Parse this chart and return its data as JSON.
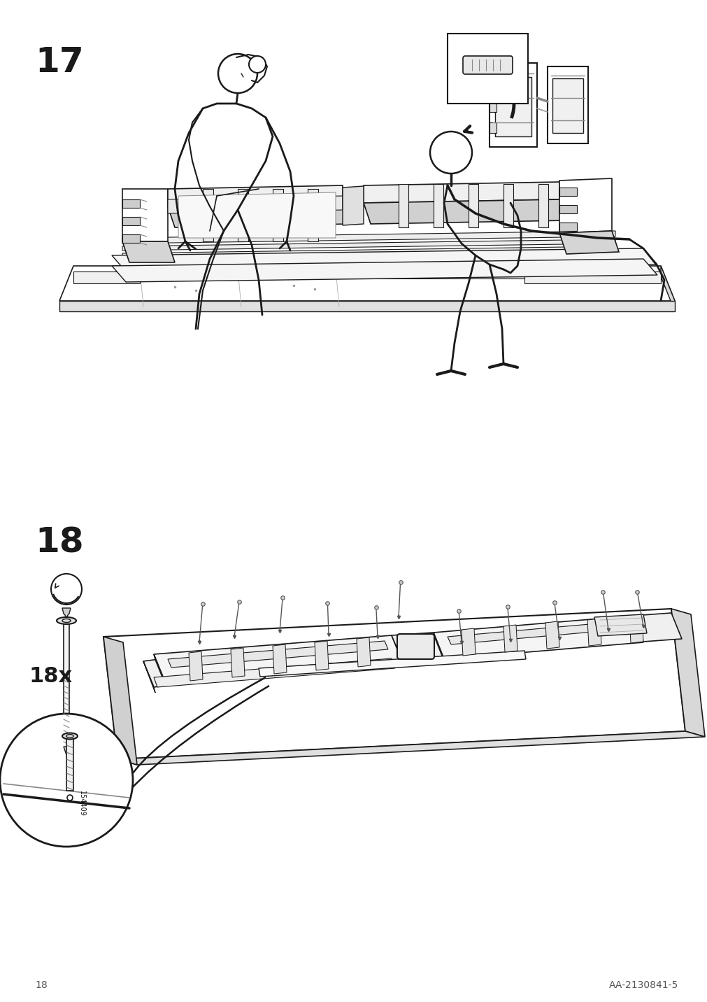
{
  "page_number": "18",
  "doc_id": "AA-2130841-5",
  "step17_label": "17",
  "step18_label": "18",
  "quantity_label": "18x",
  "part_id": "154409",
  "background_color": "#ffffff",
  "line_color": "#1a1a1a",
  "step_label_fontsize": 36,
  "footer_fontsize": 10,
  "quantity_fontsize": 22,
  "figsize": [
    10.12,
    14.32
  ],
  "dpi": 100
}
